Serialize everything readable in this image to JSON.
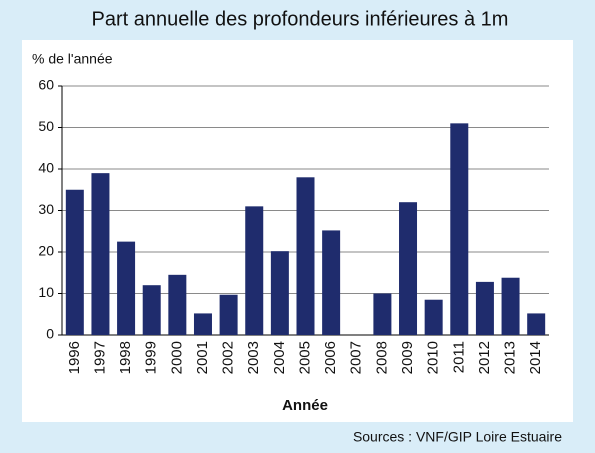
{
  "chart_data": {
    "type": "bar",
    "title": "Part annuelle des profondeurs inférieures à 1m",
    "y_label": "% de l'année",
    "x_label": "Année",
    "source": "Sources : VNF/GIP Loire Estuaire",
    "categories": [
      "1996",
      "1997",
      "1998",
      "1999",
      "2000",
      "2001",
      "2002",
      "2003",
      "2004",
      "2005",
      "2006",
      "2007",
      "2008",
      "2009",
      "2010",
      "2011",
      "2012",
      "2013",
      "2014"
    ],
    "values": [
      35,
      39,
      22.5,
      12,
      14.5,
      5.2,
      9.7,
      31,
      20.2,
      38,
      25.2,
      0,
      10,
      32,
      8.5,
      51,
      12.8,
      13.8,
      5.2
    ],
    "color": "#1f2c6d",
    "ylim": [
      0,
      60
    ],
    "yticks": [
      0,
      10,
      20,
      30,
      40,
      50,
      60
    ],
    "grid": true
  }
}
